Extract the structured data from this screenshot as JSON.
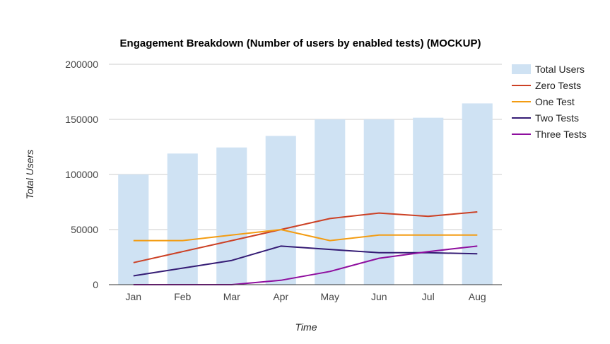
{
  "chart_data": {
    "type": "bar",
    "title": "Engagement Breakdown (Number of users by enabled tests) (MOCKUP)",
    "xlabel": "Time",
    "ylabel": "Total Users",
    "categories": [
      "Jan",
      "Feb",
      "Mar",
      "Apr",
      "May",
      "Jun",
      "Jul",
      "Aug"
    ],
    "ylim": [
      0,
      200000
    ],
    "yticks": [
      "0",
      "50000",
      "100000",
      "150000",
      "200000"
    ],
    "grid": true,
    "legend_position": "right",
    "series": [
      {
        "name": "Total Users",
        "kind": "bar",
        "color": "#cfe2f3",
        "values": [
          100000,
          119000,
          124500,
          135000,
          150000,
          150000,
          151500,
          164500
        ]
      },
      {
        "name": "Zero Tests",
        "kind": "line",
        "color": "#cc4125",
        "values": [
          20000,
          30000,
          40000,
          50000,
          60000,
          65000,
          62000,
          66000
        ]
      },
      {
        "name": "One Test",
        "kind": "line",
        "color": "#f39c12",
        "values": [
          40000,
          40000,
          45000,
          50000,
          40000,
          45000,
          45000,
          45000
        ]
      },
      {
        "name": "Two Tests",
        "kind": "line",
        "color": "#351c75",
        "values": [
          8000,
          15000,
          22000,
          35000,
          32000,
          29000,
          29000,
          28000
        ]
      },
      {
        "name": "Three Tests",
        "kind": "line",
        "color": "#8e0e9e",
        "values": [
          0,
          0,
          0,
          4000,
          12000,
          24000,
          30000,
          35000
        ]
      }
    ]
  }
}
